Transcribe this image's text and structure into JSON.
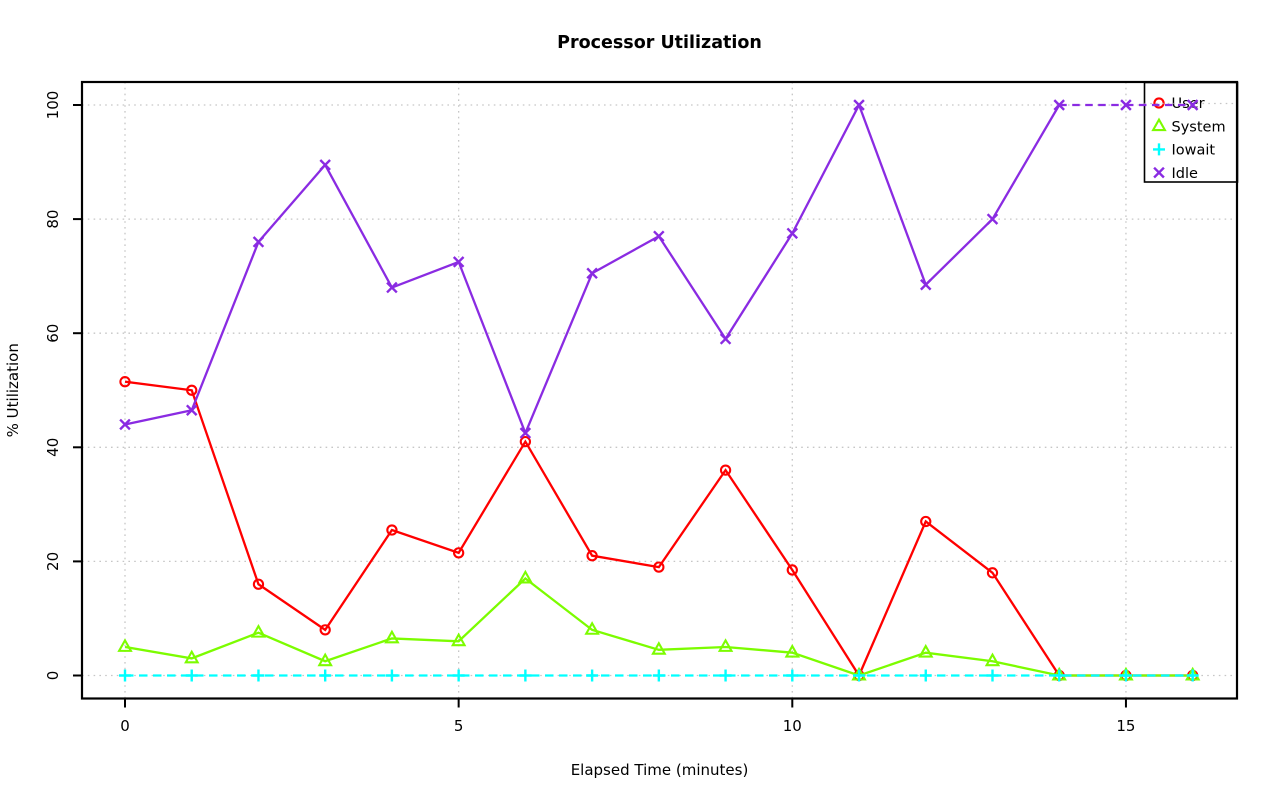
{
  "page": {
    "background": "#FFFFFF"
  },
  "chart_data": {
    "type": "line",
    "title": "Processor Utilization",
    "xlabel": "Elapsed Time (minutes)",
    "ylabel": "% Utilization",
    "x": [
      0,
      1,
      2,
      3,
      4,
      5,
      6,
      7,
      8,
      9,
      10,
      11,
      12,
      13,
      14,
      15,
      16
    ],
    "xticks": [
      0,
      5,
      10,
      15
    ],
    "yticks": [
      0,
      20,
      40,
      60,
      80,
      100
    ],
    "xlim": [
      0,
      16
    ],
    "ylim": [
      0,
      100
    ],
    "grid": {
      "show": true,
      "style": "dotted",
      "color": "#C6C6C6"
    },
    "frame_color": "#000000",
    "legend": {
      "position": "top-right",
      "entries": [
        "User",
        "System",
        "Iowait",
        "Idle"
      ]
    },
    "series": [
      {
        "name": "User",
        "color": "#FF0000",
        "marker": "circle",
        "line": "solid",
        "values": [
          51.5,
          50,
          16,
          8,
          25.5,
          21.5,
          41,
          21,
          19,
          36,
          18.5,
          0,
          27,
          18,
          0,
          0,
          0
        ]
      },
      {
        "name": "System",
        "color": "#7CFC00",
        "marker": "triangle",
        "line": "solid",
        "values": [
          5,
          3,
          7.5,
          2.5,
          6.5,
          6,
          17,
          8,
          4.5,
          5,
          4,
          0,
          4,
          2.5,
          0,
          0,
          0
        ]
      },
      {
        "name": "Iowait",
        "color": "#00FFFF",
        "marker": "plus",
        "line": "dashed",
        "values": [
          0,
          0,
          0,
          0,
          0,
          0,
          0,
          0,
          0,
          0,
          0,
          0,
          0,
          0,
          0,
          0,
          0
        ]
      },
      {
        "name": "Idle",
        "color": "#8A2BE2",
        "marker": "x",
        "line": "solid",
        "dashed_at_ymax": true,
        "values": [
          44,
          46.5,
          76,
          89.5,
          68,
          72.5,
          42.5,
          70.5,
          77,
          59,
          77.5,
          100,
          68.5,
          80,
          100,
          100,
          100
        ]
      }
    ]
  }
}
